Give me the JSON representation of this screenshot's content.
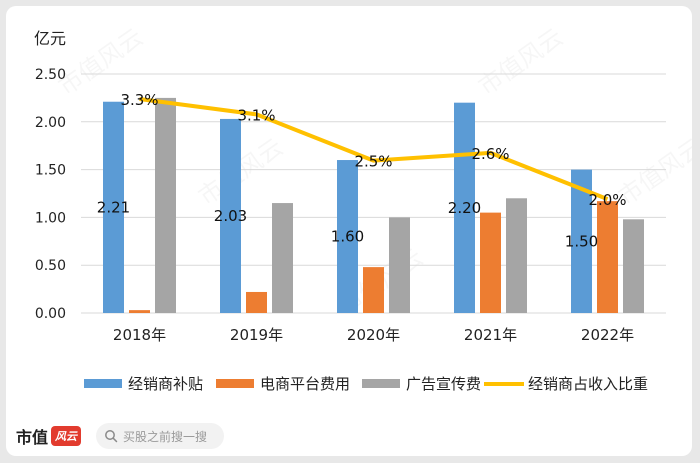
{
  "chart_data": {
    "type": "bar",
    "unit_label": "亿元",
    "categories": [
      "2018年",
      "2019年",
      "2020年",
      "2021年",
      "2022年"
    ],
    "series": [
      {
        "name": "经销商补贴",
        "values": [
          2.21,
          2.03,
          1.6,
          2.2,
          1.5
        ],
        "color": "#5b9bd5",
        "data_labels": [
          "2.21",
          "2.03",
          "1.60",
          "2.20",
          "1.50"
        ]
      },
      {
        "name": "电商平台费用",
        "values": [
          0.03,
          0.22,
          0.48,
          1.05,
          1.17
        ],
        "color": "#ed7d31"
      },
      {
        "name": "广告宣传费",
        "values": [
          2.25,
          1.15,
          1.0,
          1.2,
          0.98
        ],
        "color": "#a5a5a5"
      }
    ],
    "line_series": {
      "name": "经销商占收入比重",
      "values": [
        3.3,
        3.1,
        2.5,
        2.6,
        2.0
      ],
      "labels": [
        "3.3%",
        "3.1%",
        "2.5%",
        "2.6%",
        "2.0%"
      ],
      "color": "#ffc000"
    },
    "yaxis": {
      "ylim": [
        0,
        2.5
      ],
      "ticks": [
        "0.00",
        "0.50",
        "1.00",
        "1.50",
        "2.00",
        "2.50"
      ]
    },
    "grid": true,
    "legend_position": "bottom"
  },
  "footer": {
    "logo_text": "市值",
    "logo_badge": "风云",
    "search_icon": "search-icon",
    "search_placeholder": "买股之前搜一搜"
  },
  "watermark": "市值风云"
}
